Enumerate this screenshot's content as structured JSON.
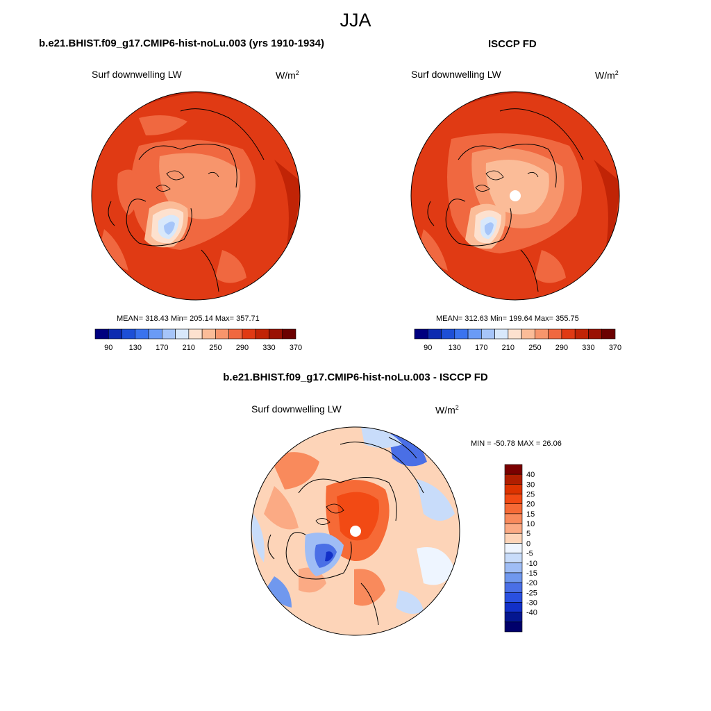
{
  "season": "JJA",
  "panels": [
    {
      "title": "b.e21.BHIST.f09_g17.CMIP6-hist-noLu.003 (yrs 1910-1934)",
      "variable": "Surf downwelling LW",
      "unit_base": "W/m",
      "unit_exp": "2",
      "stats": "MEAN= 318.43  Min= 205.14  Max= 357.71"
    },
    {
      "title": "ISCCP FD",
      "variable": "Surf downwelling LW",
      "unit_base": "W/m",
      "unit_exp": "2",
      "stats": "MEAN= 312.63  Min= 199.64  Max= 355.75"
    },
    {
      "title": "b.e21.BHIST.f09_g17.CMIP6-hist-noLu.003 - ISCCP FD",
      "variable": "Surf downwelling LW",
      "unit_base": "W/m",
      "unit_exp": "2",
      "stats": "MIN = -50.78 MAX =  26.06"
    }
  ],
  "abs_colorbar": {
    "colors": [
      "#00007f",
      "#0d2bb0",
      "#1d4fd6",
      "#3a73ee",
      "#6a9bf6",
      "#a6c5f9",
      "#d8e8fb",
      "#fde1cf",
      "#fbbc98",
      "#f7956c",
      "#f06840",
      "#e03a14",
      "#c12406",
      "#9a1103",
      "#6b0000"
    ],
    "tick_labels": [
      "90",
      "130",
      "170",
      "210",
      "250",
      "290",
      "330",
      "370"
    ]
  },
  "diff_colorbar": {
    "colors_top_to_bottom": [
      "#7a0000",
      "#b01e00",
      "#dd3300",
      "#f24a14",
      "#f66a36",
      "#f98a5c",
      "#fbaa84",
      "#fdd4b8",
      "#eef5ff",
      "#c8dcfa",
      "#9fbdf5",
      "#7098ee",
      "#4a6fe6",
      "#2a50e0",
      "#1230c8",
      "#041690",
      "#00006b"
    ],
    "tick_labels": [
      "40",
      "30",
      "25",
      "20",
      "15",
      "10",
      "5",
      "0",
      "-5",
      "-10",
      "-15",
      "-20",
      "-25",
      "-30",
      "-40"
    ]
  }
}
